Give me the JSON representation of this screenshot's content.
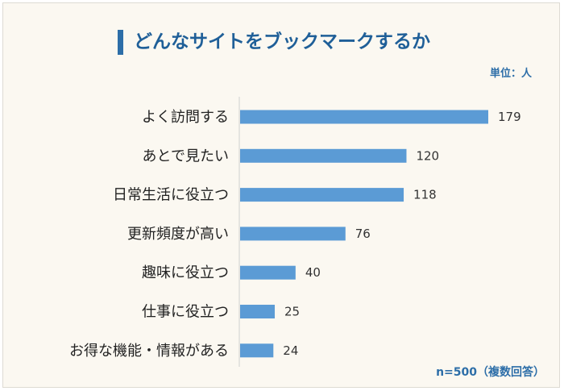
{
  "chart_data": {
    "type": "bar",
    "orientation": "horizontal",
    "title": "どんなサイトをブックマークするか",
    "unit_label": "単位：人",
    "note": "n=500（複数回答）",
    "categories": [
      "よく訪問する",
      "あとで見たい",
      "日常生活に役立つ",
      "更新頻度が高い",
      "趣味に役立つ",
      "仕事に役立つ",
      "お得な機能・情報がある"
    ],
    "values": [
      179,
      120,
      118,
      76,
      40,
      25,
      24
    ],
    "xlim": [
      0,
      200
    ],
    "grid": false,
    "legend": "none",
    "bar_color": "#5b9bd5"
  }
}
